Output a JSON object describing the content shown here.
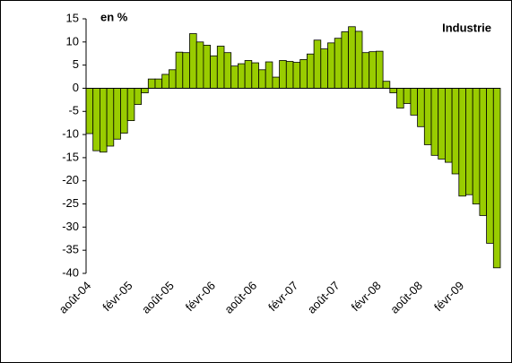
{
  "chart_data": {
    "type": "bar",
    "title": "Industrie",
    "ylabel": "en %",
    "categories": [
      "août-04",
      null,
      null,
      null,
      null,
      null,
      "févr-05",
      null,
      null,
      null,
      null,
      null,
      "août-05",
      null,
      null,
      null,
      null,
      null,
      "févr-06",
      null,
      null,
      null,
      null,
      null,
      "août-06",
      null,
      null,
      null,
      null,
      null,
      "févr-07",
      null,
      null,
      null,
      null,
      null,
      "août-07",
      null,
      null,
      null,
      null,
      null,
      "févr-08",
      null,
      null,
      null,
      null,
      null,
      "août-08",
      null,
      null,
      null,
      null,
      null,
      "févr-09",
      null,
      null,
      null,
      null,
      null
    ],
    "values": [
      -9.8,
      -13.5,
      -13.8,
      -12.5,
      -11,
      -9.7,
      -7,
      -3.5,
      -1,
      2,
      2,
      3,
      4,
      7.8,
      7.7,
      11.8,
      10,
      9.3,
      7,
      9.1,
      7.7,
      4.8,
      5.3,
      6,
      5.5,
      4,
      5.7,
      2.4,
      6,
      5.8,
      5.6,
      6.2,
      7.4,
      10.4,
      8.5,
      9.8,
      10.8,
      12.2,
      13.3,
      12.3,
      7.7,
      7.9,
      8,
      1.5,
      -1,
      -4.3,
      -3.3,
      -5.8,
      -8.3,
      -12.2,
      -14.5,
      -15.3,
      -16,
      -18.5,
      -23.3,
      -23,
      -25,
      -27.5,
      -33.5,
      -38.8
    ],
    "color": "#99cc00",
    "ylim": [
      -40,
      15
    ],
    "yticks": [
      -40,
      -35,
      -30,
      -25,
      -20,
      -15,
      -10,
      -5,
      0,
      5,
      10,
      15
    ]
  }
}
